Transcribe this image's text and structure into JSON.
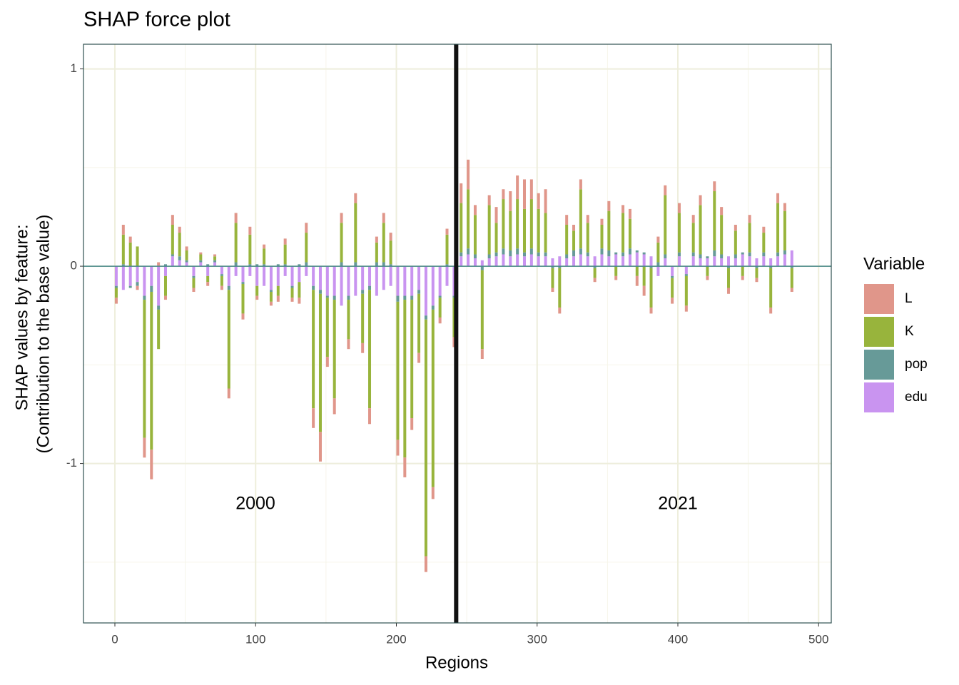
{
  "chart_data": {
    "type": "stacked-bar",
    "title": "SHAP force plot",
    "xlabel": "Regions",
    "ylabel": [
      "SHAP values by feature:",
      "(Contribution to the base value)"
    ],
    "legend_title": "Variable",
    "legend": "right",
    "grid": true,
    "xlim": [
      -22.3,
      509
    ],
    "ylim": [
      -1.808,
      1.125
    ],
    "xticks": [
      0,
      100,
      200,
      300,
      400,
      500
    ],
    "yticks": [
      -1,
      0,
      1
    ],
    "xminorticks": [
      50,
      150,
      250,
      350,
      450
    ],
    "yminorticks": [
      -1.5,
      -0.5,
      0.5
    ],
    "vline": 242.5,
    "annotations": [
      "2000",
      "2021"
    ],
    "x": [
      1,
      6,
      11,
      16,
      21,
      26,
      31,
      36,
      41,
      46,
      51,
      56,
      61,
      66,
      71,
      76,
      81,
      86,
      91,
      96,
      101,
      106,
      111,
      116,
      121,
      126,
      131,
      136,
      141,
      146,
      151,
      156,
      161,
      166,
      171,
      176,
      181,
      186,
      191,
      196,
      201,
      206,
      211,
      216,
      221,
      226,
      231,
      236,
      241,
      246,
      251,
      256,
      261,
      266,
      271,
      276,
      281,
      286,
      291,
      296,
      301,
      306,
      311,
      316,
      321,
      326,
      331,
      336,
      341,
      346,
      351,
      356,
      361,
      366,
      371,
      376,
      381,
      386,
      391,
      396,
      401,
      406,
      411,
      416,
      421,
      426,
      431,
      436,
      441,
      446,
      451,
      456,
      461,
      466,
      471,
      476,
      481
    ],
    "series": [
      {
        "name": "L",
        "color": "#e0968a",
        "values": [
          -0.03,
          0.05,
          0.03,
          -0.02,
          -0.1,
          -0.15,
          0.02,
          -0.02,
          0.05,
          0.03,
          0.02,
          -0.02,
          0.01,
          -0.02,
          0.01,
          -0.02,
          -0.05,
          0.05,
          -0.03,
          0.04,
          -0.02,
          0.02,
          -0.02,
          -0.03,
          0.03,
          -0.02,
          -0.03,
          0.05,
          -0.1,
          -0.15,
          -0.05,
          -0.08,
          0.05,
          -0.05,
          0.05,
          -0.05,
          -0.08,
          0.03,
          0.05,
          0.04,
          -0.08,
          -0.1,
          -0.06,
          -0.05,
          -0.08,
          -0.06,
          -0.03,
          0.03,
          -0.05,
          0.1,
          0.15,
          0.05,
          -0.05,
          0.05,
          0.08,
          0.05,
          0.1,
          0.12,
          0.15,
          0.1,
          0.08,
          0.12,
          -0.02,
          -0.03,
          0.05,
          0.03,
          0.05,
          0.04,
          -0.02,
          0.03,
          0.05,
          -0.02,
          0.04,
          0.05,
          -0.05,
          -0.05,
          -0.03,
          0.03,
          0.05,
          -0.03,
          0.05,
          -0.03,
          0.04,
          0.05,
          -0.02,
          0.05,
          0.04,
          -0.03,
          0.03,
          -0.02,
          0.04,
          -0.02,
          0.03,
          -0.03,
          0.05,
          0.04,
          -0.02
        ]
      },
      {
        "name": "K",
        "color": "#98b43c",
        "values": [
          -0.05,
          0.15,
          0.12,
          0.1,
          -0.7,
          -0.8,
          -0.2,
          -0.1,
          0.15,
          0.12,
          0.05,
          -0.05,
          0.03,
          -0.03,
          0.02,
          -0.05,
          -0.5,
          0.2,
          -0.15,
          0.15,
          -0.05,
          0.08,
          -0.05,
          -0.05,
          0.1,
          -0.05,
          -0.08,
          0.15,
          -0.6,
          -0.7,
          -0.3,
          -0.5,
          0.2,
          -0.2,
          0.3,
          -0.25,
          -0.6,
          0.1,
          0.2,
          0.12,
          -0.7,
          -0.8,
          -0.6,
          -0.3,
          -1.2,
          -0.9,
          -0.1,
          0.15,
          -0.2,
          0.25,
          0.3,
          0.2,
          -0.4,
          0.25,
          0.15,
          0.25,
          0.2,
          0.25,
          0.22,
          0.25,
          0.22,
          0.2,
          -0.1,
          -0.2,
          0.15,
          0.1,
          0.3,
          0.15,
          -0.05,
          0.12,
          0.2,
          -0.05,
          0.2,
          0.15,
          -0.05,
          -0.1,
          -0.2,
          0.1,
          0.3,
          -0.1,
          0.2,
          -0.15,
          0.15,
          0.25,
          -0.05,
          0.3,
          0.2,
          -0.1,
          0.12,
          -0.05,
          0.15,
          -0.05,
          0.1,
          -0.2,
          0.25,
          0.2,
          -0.1
        ]
      },
      {
        "name": "pop",
        "color": "#679a98",
        "values": [
          -0.01,
          0.01,
          -0.01,
          -0.02,
          -0.02,
          -0.03,
          -0.02,
          0.01,
          0.01,
          0.02,
          0.01,
          -0.01,
          0.01,
          0.01,
          0.01,
          -0.01,
          -0.02,
          0.02,
          -0.01,
          0.01,
          0.01,
          0.01,
          -0.01,
          0.01,
          0.01,
          -0.01,
          0.01,
          0.02,
          -0.02,
          -0.02,
          -0.01,
          -0.02,
          0.02,
          -0.02,
          0.02,
          -0.02,
          -0.02,
          0.02,
          0.02,
          0.01,
          -0.03,
          -0.02,
          -0.02,
          -0.02,
          -0.02,
          -0.02,
          -0.01,
          0.01,
          -0.01,
          0.02,
          0.03,
          0.02,
          -0.02,
          0.02,
          0.02,
          0.03,
          0.03,
          0.03,
          0.02,
          0.03,
          0.02,
          0.02,
          -0.01,
          -0.01,
          0.02,
          0.03,
          0.03,
          0.02,
          -0.01,
          0.03,
          0.03,
          0.01,
          0.02,
          0.03,
          0.01,
          0.01,
          -0.01,
          0.02,
          0.02,
          -0.01,
          0.02,
          -0.01,
          0.02,
          0.02,
          0.01,
          0.03,
          0.02,
          -0.01,
          0.02,
          0.01,
          0.02,
          -0.01,
          0.02,
          -0.01,
          0.02,
          0.02,
          -0.01
        ]
      },
      {
        "name": "edu",
        "color": "#c994f0",
        "values": [
          -0.1,
          -0.12,
          -0.1,
          -0.08,
          -0.15,
          -0.1,
          -0.2,
          -0.05,
          0.05,
          0.03,
          0.02,
          -0.05,
          0.02,
          -0.05,
          0.02,
          -0.04,
          -0.1,
          -0.05,
          -0.08,
          -0.05,
          -0.1,
          -0.1,
          -0.12,
          -0.1,
          -0.05,
          -0.1,
          -0.08,
          -0.05,
          -0.1,
          -0.12,
          -0.15,
          -0.15,
          -0.2,
          -0.15,
          -0.15,
          -0.12,
          -0.1,
          -0.15,
          -0.12,
          -0.1,
          -0.15,
          -0.15,
          -0.15,
          -0.12,
          -0.25,
          -0.2,
          -0.15,
          -0.1,
          -0.15,
          0.05,
          0.06,
          0.04,
          0.03,
          0.04,
          0.05,
          0.06,
          0.05,
          0.06,
          0.05,
          0.06,
          0.05,
          0.05,
          0.04,
          0.05,
          0.04,
          0.05,
          0.06,
          0.05,
          0.05,
          0.06,
          0.05,
          0.06,
          0.05,
          0.06,
          0.07,
          0.06,
          0.05,
          -0.05,
          0.04,
          -0.05,
          0.05,
          -0.04,
          0.05,
          0.04,
          0.04,
          0.05,
          0.04,
          0.05,
          0.04,
          0.06,
          0.05,
          0.04,
          0.05,
          0.04,
          0.05,
          0.06,
          0.08
        ]
      }
    ]
  }
}
